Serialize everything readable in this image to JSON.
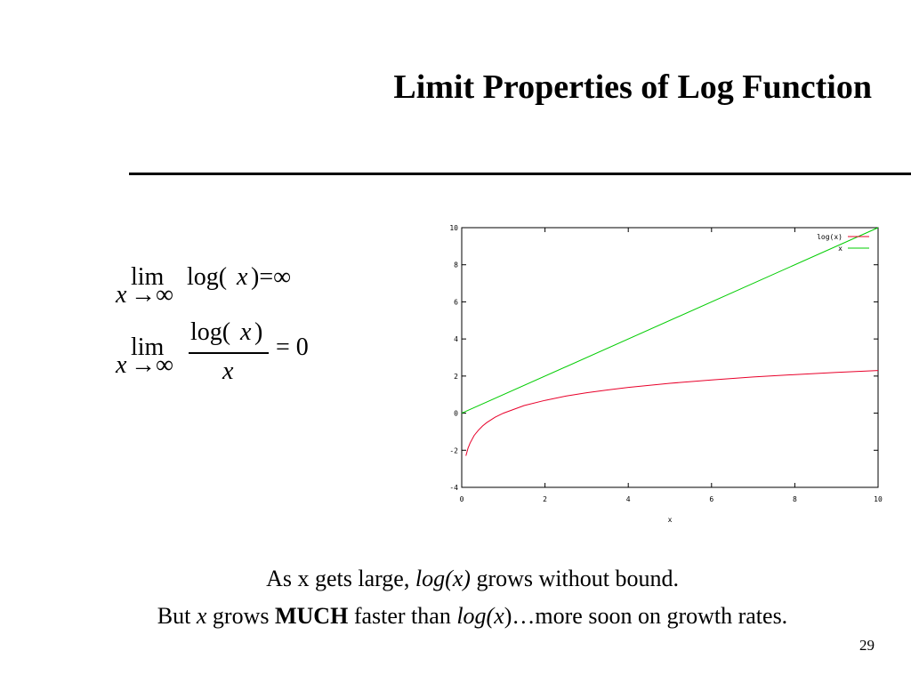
{
  "slide": {
    "title": "Limit Properties of Log Function",
    "page_number": "29"
  },
  "formulas": {
    "f1_lim": "lim",
    "f1_sub_x": "x",
    "f1_sub_to": "→∞",
    "f1_log": "log(",
    "f1_x": "x",
    "f1_rhs": ")=∞",
    "f2_lim": "lim",
    "f2_sub_x": "x",
    "f2_sub_to": "→∞",
    "f2_num_log": "log(",
    "f2_num_x": "x",
    "f2_num_close": ")",
    "f2_den": "x",
    "f2_rhs": "= 0"
  },
  "caption": {
    "line1_a": "As x gets large, ",
    "line1_b": "log(x)",
    "line1_c": " grows without bound.",
    "line2_a": "But ",
    "line2_b": "x",
    "line2_c": " grows ",
    "line2_d": "MUCH",
    "line2_e": " faster than ",
    "line2_f": "log(x",
    "line2_g": ")…more soon on growth rates."
  },
  "chart_data": {
    "type": "line",
    "xlabel": "x",
    "ylabel": "",
    "xlim": [
      0,
      10
    ],
    "ylim": [
      -4,
      10
    ],
    "x_ticks": [
      "0",
      "2",
      "4",
      "6",
      "8",
      "10"
    ],
    "y_ticks": [
      "-4",
      "-2",
      "0",
      "2",
      "4",
      "6",
      "8",
      "10"
    ],
    "legend": "top-right",
    "grid": false,
    "series": [
      {
        "name": "log(x)",
        "color": "#e8002a",
        "x": [
          0.1,
          0.15,
          0.2,
          0.3,
          0.4,
          0.5,
          0.6,
          0.8,
          1,
          1.5,
          2,
          2.5,
          3,
          3.5,
          4,
          5,
          6,
          7,
          8,
          9,
          10
        ],
        "y": [
          -2.3,
          -1.9,
          -1.61,
          -1.2,
          -0.92,
          -0.69,
          -0.51,
          -0.22,
          0,
          0.41,
          0.69,
          0.92,
          1.1,
          1.25,
          1.39,
          1.61,
          1.79,
          1.95,
          2.08,
          2.2,
          2.3
        ]
      },
      {
        "name": "x",
        "color": "#00cc00",
        "x": [
          0,
          10
        ],
        "y": [
          0,
          10
        ]
      }
    ]
  }
}
